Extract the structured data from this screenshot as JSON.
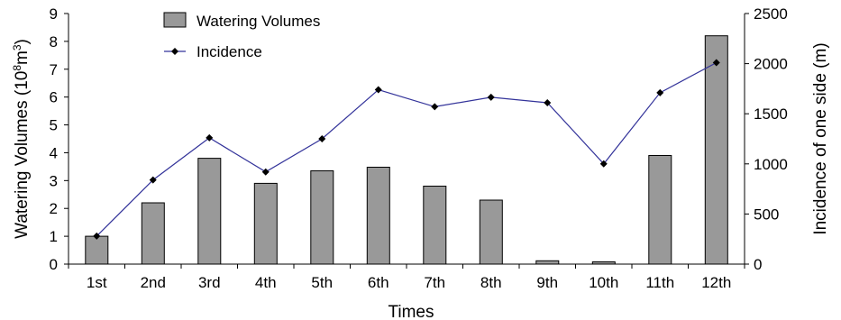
{
  "colors": {
    "bar_fill": "#999999",
    "bar_stroke": "#000000",
    "line": "#33339a",
    "marker": "#000000",
    "axis": "#000000"
  },
  "chart_data": {
    "type": "bar",
    "title": "",
    "xlabel": "Times",
    "ylabel_left": "Watering Volumes (10",
    "ylabel_left_sup": "8",
    "ylabel_left_unit": "m",
    "ylabel_left_sup2": "3",
    "ylabel_left_close": ")",
    "ylabel_right": "Incidence of one side (m)",
    "categories": [
      "1st",
      "2nd",
      "3rd",
      "4th",
      "5th",
      "6th",
      "7th",
      "8th",
      "9th",
      "10th",
      "11th",
      "12th"
    ],
    "y_left_lim": [
      0,
      9
    ],
    "y_left_ticks": [
      "0",
      "1",
      "2",
      "3",
      "4",
      "5",
      "6",
      "7",
      "8",
      "9"
    ],
    "y_right_lim": [
      0,
      2500
    ],
    "y_right_ticks": [
      "0",
      "500",
      "1000",
      "1500",
      "2000",
      "2500"
    ],
    "grid": false,
    "legend_position": "top-center",
    "series": [
      {
        "name": "Watering Volumes",
        "kind": "bar",
        "axis": "left",
        "values": [
          1.0,
          2.2,
          3.8,
          2.9,
          3.35,
          3.48,
          2.8,
          2.3,
          0.12,
          0.08,
          3.9,
          8.2
        ]
      },
      {
        "name": "Incidence",
        "kind": "line",
        "axis": "right",
        "values": [
          280,
          840,
          1260,
          920,
          1250,
          1740,
          1570,
          1665,
          1610,
          1000,
          1710,
          2010
        ]
      }
    ]
  }
}
